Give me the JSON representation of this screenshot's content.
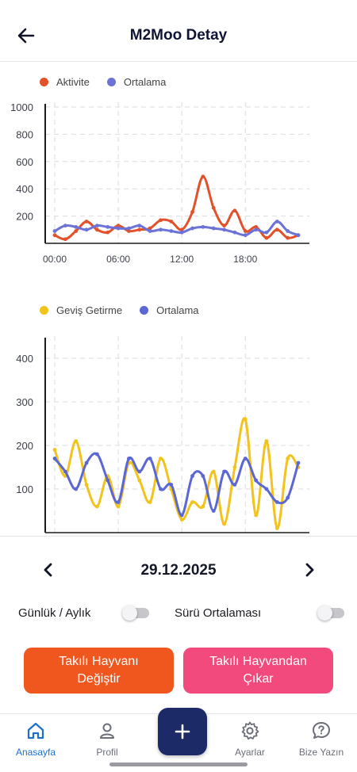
{
  "header": {
    "title": "M2Moo Detay"
  },
  "chart_data": [
    {
      "type": "line",
      "x": [
        "00:00",
        "01:00",
        "02:00",
        "03:00",
        "04:00",
        "05:00",
        "06:00",
        "07:00",
        "08:00",
        "09:00",
        "10:00",
        "11:00",
        "12:00",
        "13:00",
        "14:00",
        "15:00",
        "16:00",
        "17:00",
        "18:00",
        "19:00",
        "20:00",
        "21:00",
        "22:00",
        "23:00"
      ],
      "series": [
        {
          "name": "Aktivite",
          "values": [
            60,
            30,
            90,
            160,
            100,
            80,
            130,
            90,
            100,
            110,
            170,
            160,
            100,
            230,
            490,
            260,
            130,
            240,
            90,
            120,
            40,
            100,
            40,
            60
          ]
        },
        {
          "name": "Ortalama",
          "values": [
            90,
            130,
            120,
            100,
            130,
            120,
            110,
            110,
            130,
            90,
            100,
            90,
            80,
            110,
            120,
            110,
            100,
            80,
            60,
            100,
            80,
            160,
            90,
            60
          ]
        }
      ],
      "xticks": [
        "00:00",
        "06:00",
        "12:00",
        "18:00"
      ],
      "yticks": [
        200,
        400,
        600,
        800,
        1000
      ],
      "ylim": [
        0,
        1000
      ],
      "grid": true,
      "legend": "top-left",
      "colors": [
        "#e2512a",
        "#6b72d8"
      ]
    },
    {
      "type": "line",
      "x": [
        "00:00",
        "01:00",
        "02:00",
        "03:00",
        "04:00",
        "05:00",
        "06:00",
        "07:00",
        "08:00",
        "09:00",
        "10:00",
        "11:00",
        "12:00",
        "13:00",
        "14:00",
        "15:00",
        "16:00",
        "17:00",
        "18:00",
        "19:00",
        "20:00",
        "21:00",
        "22:00",
        "23:00"
      ],
      "series": [
        {
          "name": "Geviş Getirme",
          "values": [
            190,
            130,
            210,
            110,
            60,
            130,
            60,
            160,
            120,
            70,
            170,
            100,
            30,
            70,
            60,
            140,
            20,
            150,
            260,
            40,
            210,
            10,
            170,
            150
          ]
        },
        {
          "name": "Ortalama",
          "values": [
            170,
            140,
            100,
            160,
            180,
            120,
            70,
            170,
            140,
            170,
            100,
            110,
            40,
            130,
            130,
            50,
            140,
            110,
            170,
            120,
            100,
            70,
            80,
            160
          ]
        }
      ],
      "xticks": [
        "00:00",
        "06:00",
        "12:00",
        "18:00"
      ],
      "yticks": [
        100,
        200,
        300,
        400
      ],
      "ylim": [
        0,
        440
      ],
      "grid": true,
      "legend": "top-left",
      "colors": [
        "#f2c31c",
        "#5b67d2"
      ]
    }
  ],
  "date_nav": {
    "date": "29.12.2025",
    "prev_icon": "chevron-left-icon",
    "next_icon": "chevron-right-icon"
  },
  "toggles": {
    "period_label": "Günlük / Aylık",
    "period_on": false,
    "herd_label": "Sürü Ortalaması",
    "herd_on": false
  },
  "actions": {
    "change_label_line1": "Takılı Hayvanı",
    "change_label_line2": "Değiştir",
    "change_color": "#f0571f",
    "remove_label_line1": "Takılı Hayvandan",
    "remove_label_line2": "Çıkar",
    "remove_color": "#f24a7d"
  },
  "bottom_nav": {
    "items": [
      {
        "label": "Anasayfa",
        "icon": "home-icon",
        "active": true
      },
      {
        "label": "Profil",
        "icon": "user-icon",
        "active": false
      },
      {
        "label": "Ayarlar",
        "icon": "gear-icon",
        "active": false
      },
      {
        "label": "Bize Yazın",
        "icon": "help-icon",
        "active": false
      }
    ],
    "fab_icon": "plus-icon",
    "accent": "#1b6fcf",
    "fab_color": "#1d2a68"
  }
}
